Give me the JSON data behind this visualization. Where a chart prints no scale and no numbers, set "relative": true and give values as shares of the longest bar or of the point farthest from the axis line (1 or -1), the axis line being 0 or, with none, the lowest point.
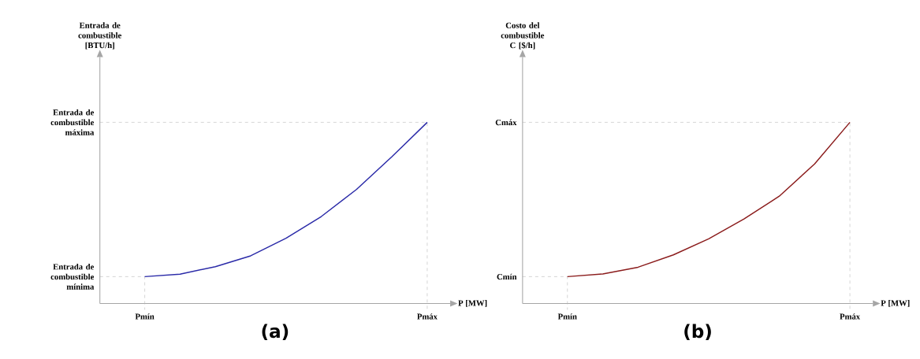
{
  "chart_data": [
    {
      "type": "line",
      "title": "(a)",
      "xlabel": "P [MW]",
      "ylabel": "Entrada de combustible [BTU/h]",
      "relative": true,
      "categories": [
        "Pmín",
        null,
        null,
        null,
        null,
        null,
        null,
        null,
        "Pmáx"
      ],
      "series": [
        {
          "color": "#2a2aa8",
          "values": [
            0.148,
            0.162,
            0.203,
            0.263,
            0.36,
            0.48,
            0.63,
            0.81,
            1.0
          ]
        }
      ],
      "ref_lines": [
        {
          "axis": "y",
          "value": 0.148,
          "label": "Entrada de combustible mínima",
          "color": "#b0b0b0",
          "line_style": "dashed"
        },
        {
          "axis": "y",
          "value": 1.0,
          "label": "Entrada de combustible máxima",
          "color": "#b0b0b0",
          "line_style": "dashed"
        }
      ]
    },
    {
      "type": "line",
      "title": "(b)",
      "xlabel": "P [MW]",
      "ylabel": "Costo del combustible C [$/h]",
      "relative": true,
      "categories": [
        "Pmín",
        null,
        null,
        null,
        null,
        null,
        null,
        null,
        "Pmáx"
      ],
      "series": [
        {
          "color": "#8b1c1c",
          "values": [
            0.148,
            0.163,
            0.2,
            0.268,
            0.357,
            0.466,
            0.592,
            0.77,
            1.0
          ]
        }
      ],
      "ref_lines": [
        {
          "axis": "y",
          "value": 0.148,
          "label": "Cmín",
          "color": "#b0b0b0",
          "line_style": "dashed"
        },
        {
          "axis": "y",
          "value": 1.0,
          "label": "Cmáx",
          "color": "#b0b0b0",
          "line_style": "dashed"
        }
      ]
    }
  ]
}
